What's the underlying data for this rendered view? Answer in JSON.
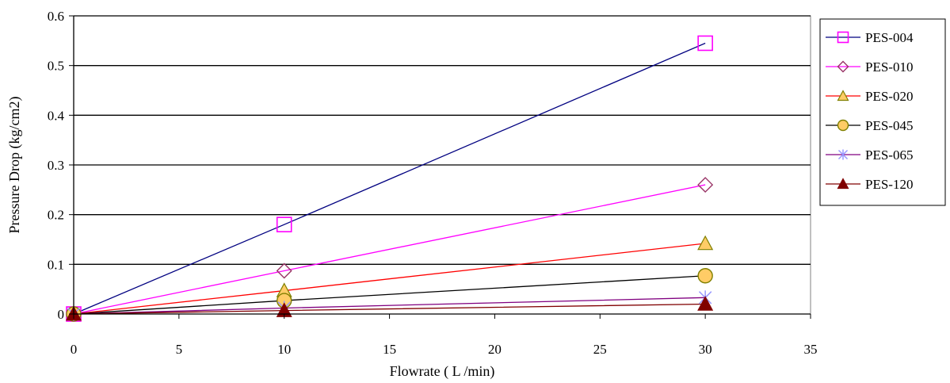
{
  "chart_data": {
    "type": "line",
    "title": "",
    "xlabel": "Flowrate ( L /min)",
    "ylabel": "Pressure Drop (kg/cm2)",
    "xlim": [
      0,
      35
    ],
    "ylim": [
      0,
      0.6
    ],
    "x_ticks": [
      "0",
      "5",
      "10",
      "15",
      "20",
      "25",
      "30",
      "35"
    ],
    "y_ticks": [
      "0",
      "0.1",
      "0.2",
      "0.3",
      "0.4",
      "0.5",
      "0.6"
    ],
    "grid": "horizontal",
    "legend_position": "right",
    "series": [
      {
        "name": "PES-004",
        "line_color": "#000080",
        "marker": "square",
        "marker_stroke": "#ff00ff",
        "marker_fill": "none",
        "points": [
          [
            0,
            0
          ],
          [
            10,
            0.18
          ],
          [
            30,
            0.545
          ]
        ]
      },
      {
        "name": "PES-010",
        "line_color": "#ff00ff",
        "marker": "diamond",
        "marker_stroke": "#993366",
        "marker_fill": "none",
        "points": [
          [
            0,
            0
          ],
          [
            10,
            0.087
          ],
          [
            30,
            0.26
          ]
        ]
      },
      {
        "name": "PES-020",
        "line_color": "#ff0000",
        "marker": "triangle",
        "marker_stroke": "#808000",
        "marker_fill": "#ffcc66",
        "points": [
          [
            0,
            0
          ],
          [
            10,
            0.047
          ],
          [
            30,
            0.142
          ]
        ]
      },
      {
        "name": "PES-045",
        "line_color": "#000000",
        "marker": "circle",
        "marker_stroke": "#808000",
        "marker_fill": "#ffcc66",
        "points": [
          [
            0,
            0
          ],
          [
            10,
            0.027
          ],
          [
            30,
            0.077
          ]
        ]
      },
      {
        "name": "PES-065",
        "line_color": "#800080",
        "marker": "asterisk",
        "marker_stroke": "#9999ff",
        "marker_fill": "none",
        "points": [
          [
            0,
            0
          ],
          [
            10,
            0.012
          ],
          [
            30,
            0.033
          ]
        ]
      },
      {
        "name": "PES-120",
        "line_color": "#800000",
        "marker": "triangle",
        "marker_stroke": "#800000",
        "marker_fill": "#800000",
        "points": [
          [
            0,
            0
          ],
          [
            10,
            0.007
          ],
          [
            30,
            0.02
          ]
        ]
      }
    ]
  }
}
